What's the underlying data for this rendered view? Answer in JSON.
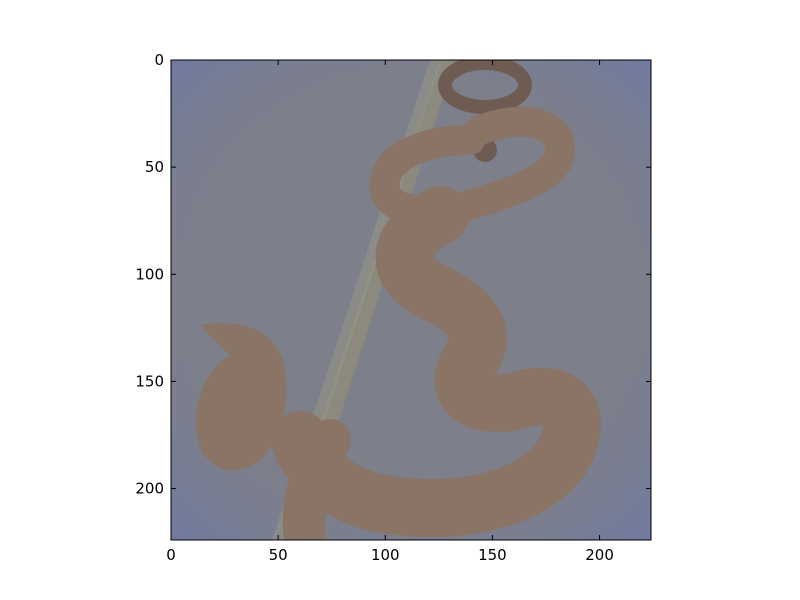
{
  "chart_data": {
    "type": "image",
    "title": "",
    "xlabel": "",
    "ylabel": "",
    "xlim": [
      0,
      224
    ],
    "ylim": [
      224,
      0
    ],
    "x_ticks": [
      0,
      50,
      100,
      150,
      200
    ],
    "y_ticks": [
      0,
      50,
      100,
      150,
      200
    ],
    "x_tick_labels": [
      "0",
      "50",
      "100",
      "150",
      "200"
    ],
    "y_tick_labels": [
      "0",
      "50",
      "100",
      "150",
      "200"
    ],
    "grid": false,
    "image_content": {
      "background_color": "#7d7f8a",
      "edge_tint_color": "#6f7ca8",
      "hook_color": "#8a7466",
      "hook_shadow_color": "#6e5c52",
      "rope_color": "#8e8c7c"
    }
  }
}
